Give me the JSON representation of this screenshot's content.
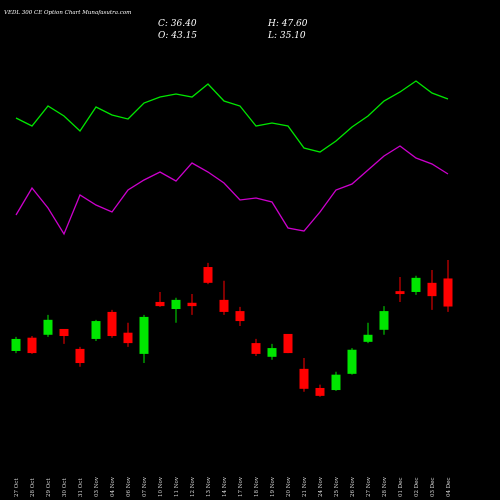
{
  "chart_data": {
    "type": "candlestick",
    "title": "VEDL 300 CE Option Chart Munafasutra.com",
    "ohlc_labels": {
      "close": "C: 36.40",
      "high": "H: 47.60",
      "open": "O: 43.15",
      "low": "L: 35.10"
    },
    "categories": [
      "27 Oct",
      "28 Oct",
      "29 Oct",
      "30 Oct",
      "31 Oct",
      "03 Nov",
      "04 Nov",
      "06 Nov",
      "07 Nov",
      "10 Nov",
      "11 Nov",
      "12 Nov",
      "13 Nov",
      "14 Nov",
      "17 Nov",
      "18 Nov",
      "19 Nov",
      "20 Nov",
      "21 Nov",
      "24 Nov",
      "25 Nov",
      "26 Nov",
      "27 Nov",
      "28 Nov",
      "01 Dec",
      "02 Dec",
      "03 Dec",
      "04 Dec"
    ],
    "open": [
      25.7,
      28.9,
      29.6,
      31.0,
      26.2,
      28.6,
      35.1,
      30.1,
      25.0,
      37.5,
      35.8,
      37.3,
      45.9,
      38.0,
      35.3,
      27.6,
      24.3,
      29.8,
      21.4,
      16.8,
      16.3,
      20.2,
      27.9,
      30.8,
      40.1,
      39.9,
      42.1,
      43.15
    ],
    "high": [
      29.1,
      29.3,
      34.4,
      31.0,
      26.7,
      33.2,
      35.6,
      32.5,
      34.4,
      39.9,
      38.5,
      39.4,
      46.9,
      42.6,
      36.3,
      28.6,
      27.4,
      29.8,
      24.0,
      17.6,
      20.7,
      26.4,
      32.5,
      36.5,
      43.5,
      43.8,
      45.2,
      47.6
    ],
    "low": [
      25.2,
      25.0,
      29.1,
      27.4,
      21.9,
      28.1,
      28.9,
      26.7,
      22.8,
      36.3,
      32.5,
      34.4,
      41.8,
      34.4,
      31.7,
      24.5,
      23.6,
      25.2,
      15.9,
      14.7,
      16.1,
      20.0,
      27.6,
      29.6,
      37.5,
      39.2,
      35.6,
      35.1
    ],
    "close": [
      28.6,
      25.2,
      33.2,
      29.3,
      22.8,
      32.9,
      29.3,
      27.6,
      33.9,
      36.5,
      38.0,
      36.5,
      42.1,
      35.1,
      32.9,
      25.0,
      26.4,
      25.2,
      16.6,
      14.9,
      20.0,
      26.0,
      29.6,
      35.3,
      39.4,
      43.3,
      38.9,
      36.4
    ],
    "up_color": "#00e600",
    "down_color": "#ff0000",
    "ylim": [
      11.5,
      50
    ],
    "indicators": {
      "ylim": [
        50,
        250
      ],
      "series": [
        {
          "color": "#00e600",
          "values": [
            182,
            174,
            194,
            184,
            169,
            193,
            185,
            181,
            197,
            203,
            206,
            203,
            216,
            199,
            194,
            174,
            177,
            174,
            152,
            148,
            159,
            173,
            184,
            199,
            208,
            219,
            207,
            201
          ]
        },
        {
          "color": "#cc00cc",
          "values": [
            85,
            112,
            92,
            66,
            105,
            95,
            88,
            110,
            120,
            128,
            119,
            137,
            128,
            117,
            100,
            102,
            98,
            72,
            69,
            88,
            110,
            116,
            130,
            144,
            154,
            142,
            136,
            126
          ]
        }
      ]
    }
  }
}
